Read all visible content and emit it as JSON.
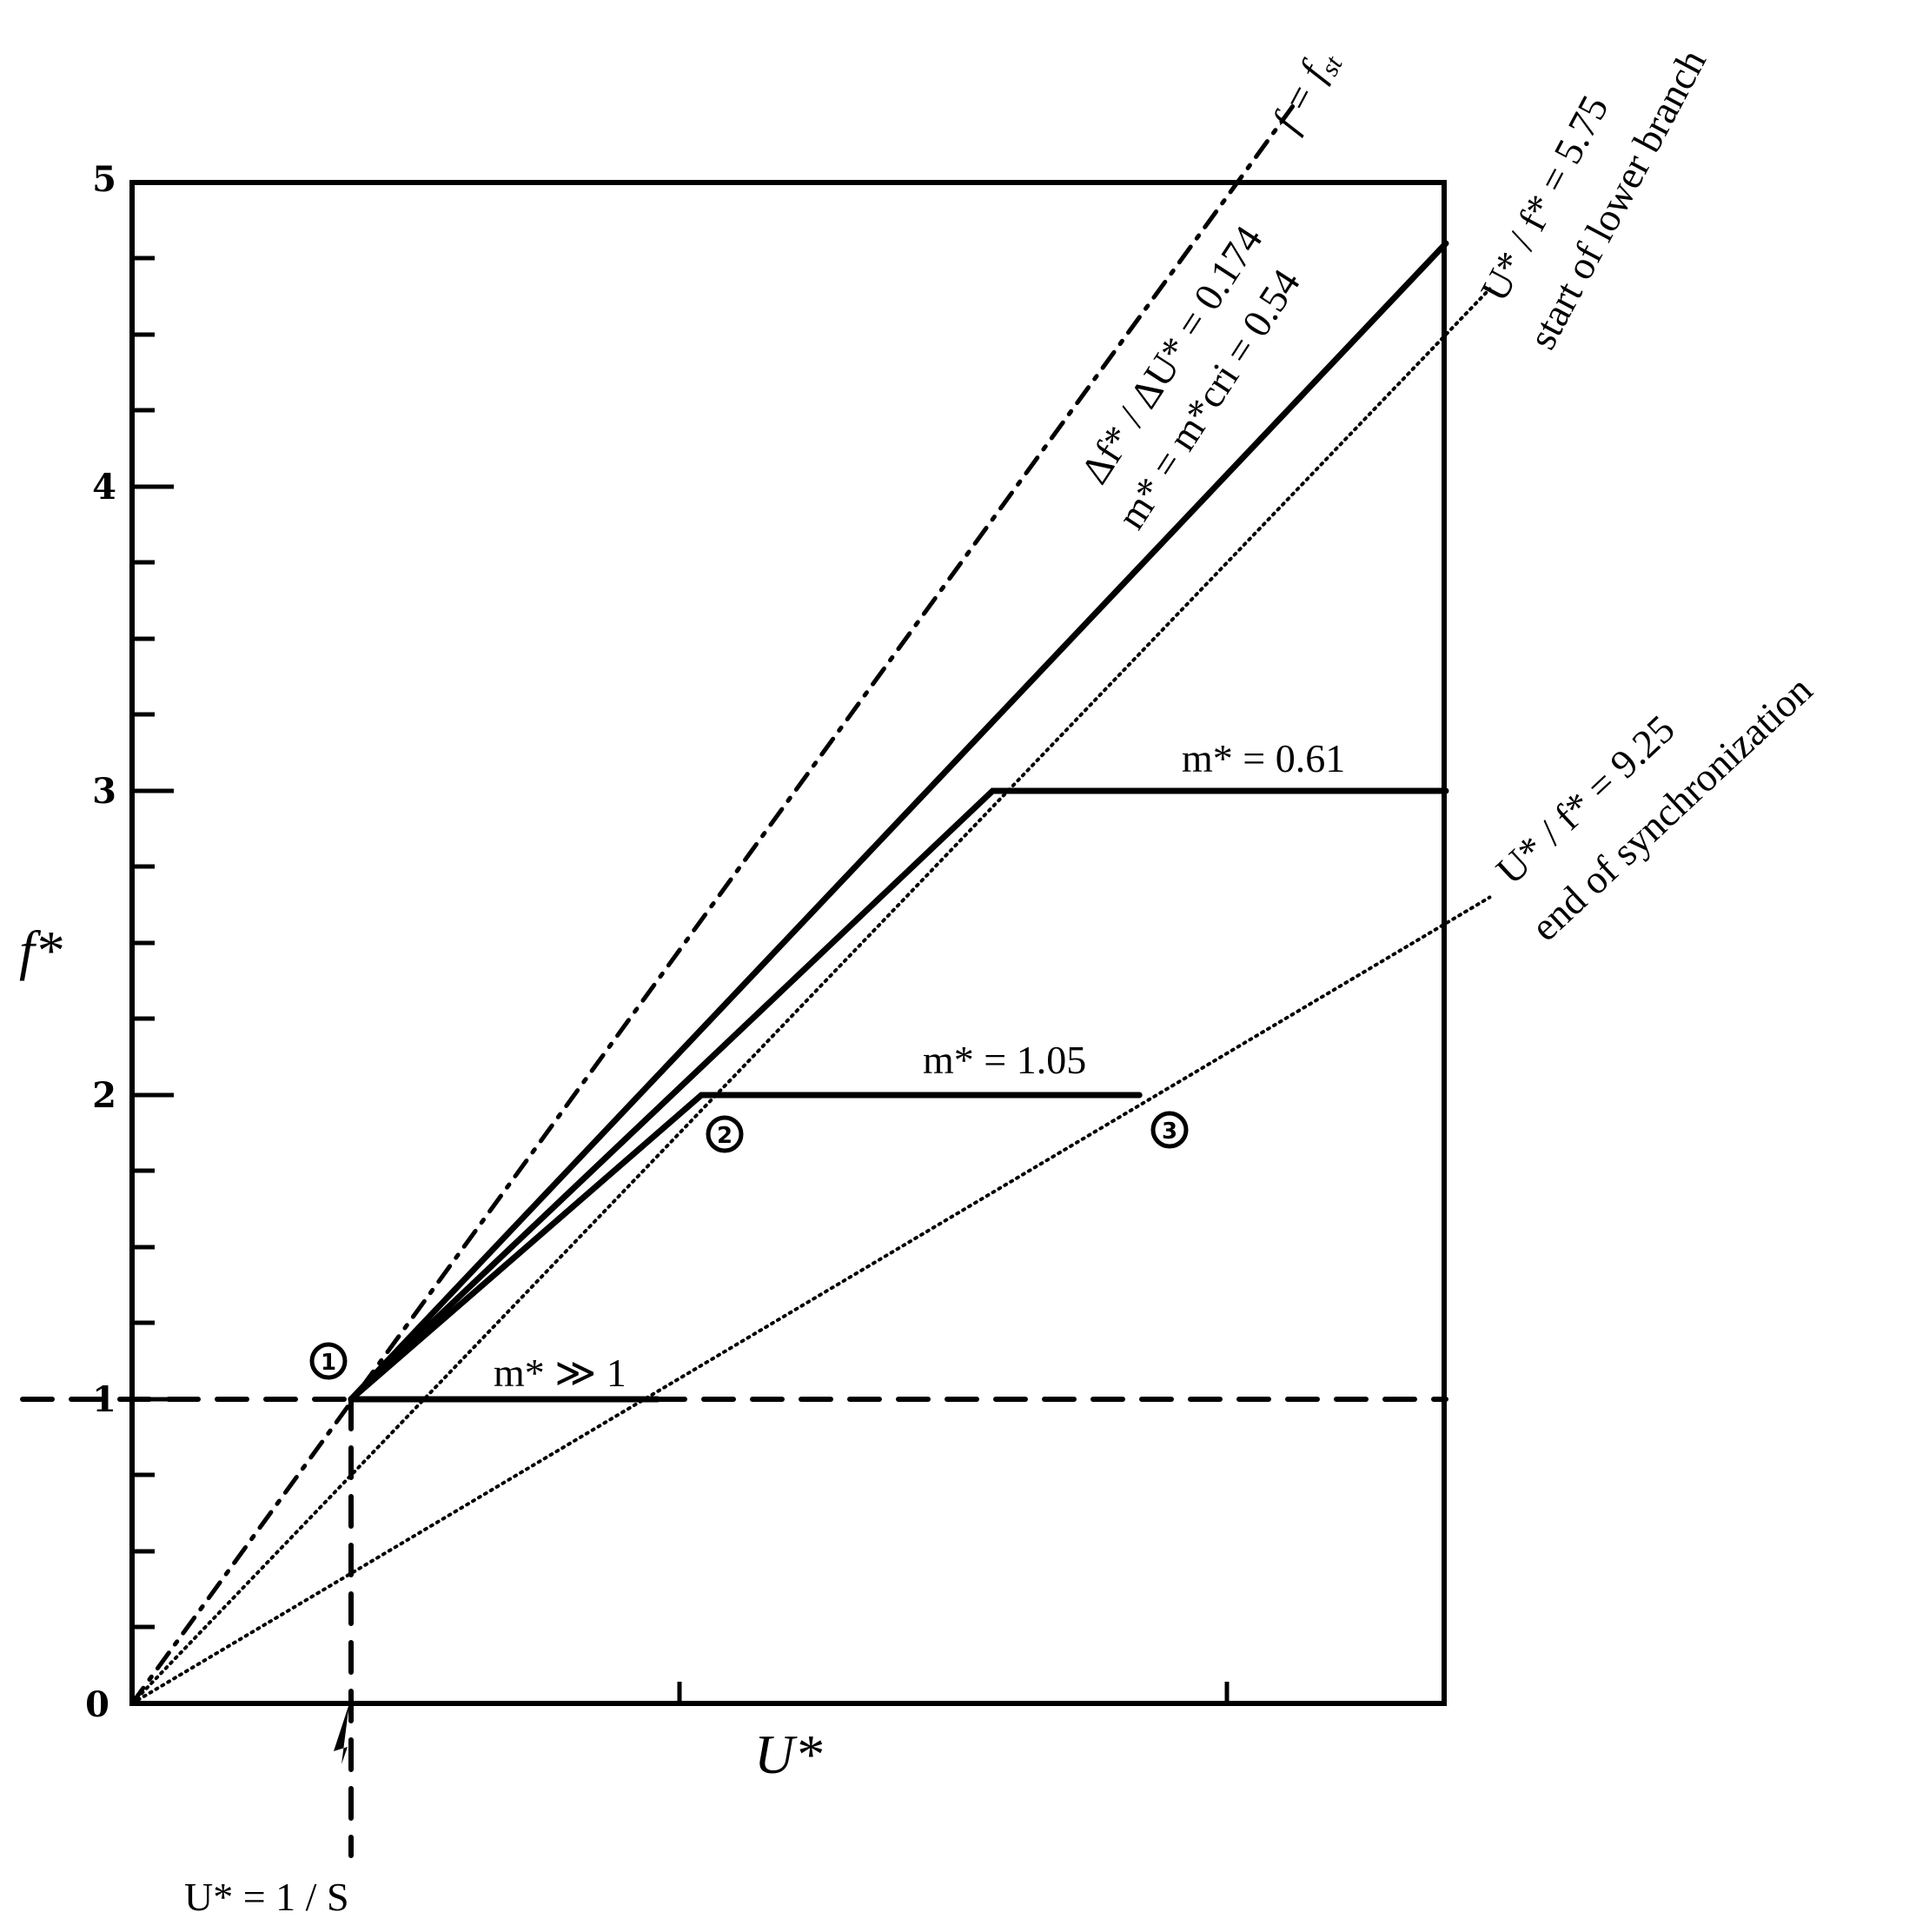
{
  "chart_data": {
    "type": "line",
    "title": "",
    "xlabel": "U*",
    "ylabel": "f*",
    "ylim": [
      0,
      5
    ],
    "yticks": [
      "0",
      "1",
      "2",
      "3",
      "4",
      "5"
    ],
    "xlim": [
      0,
      6
    ],
    "grid": false,
    "series": [
      {
        "name": "f = f_st",
        "style": "dash-dot",
        "points": [
          [
            0,
            0
          ],
          [
            5.3,
            5.25
          ]
        ]
      },
      {
        "name": "Δf*/ΔU* = 0.174",
        "style": "solid",
        "points": [
          [
            1.0,
            1.0
          ],
          [
            6.0,
            4.8
          ]
        ]
      },
      {
        "name": "m* = m*cri = 0.54",
        "style": "solid",
        "points": [
          [
            1.0,
            1.0
          ],
          [
            3.93,
            3.0
          ],
          [
            6.0,
            3.0
          ]
        ]
      },
      {
        "name": "m* = 1.05",
        "style": "solid",
        "points": [
          [
            1.0,
            1.0
          ],
          [
            2.6,
            2.0
          ],
          [
            4.6,
            2.0
          ]
        ]
      },
      {
        "name": "m* >> 1",
        "style": "solid",
        "points": [
          [
            1.0,
            1.0
          ],
          [
            2.4,
            1.0
          ]
        ]
      },
      {
        "name": "f* = 1",
        "style": "dashed",
        "points": [
          [
            -0.5,
            1.0
          ],
          [
            6.0,
            1.0
          ]
        ]
      },
      {
        "name": "U*/f* = 5.75",
        "style": "dotted",
        "points": [
          [
            0,
            0
          ],
          [
            6.2,
            4.65
          ]
        ]
      },
      {
        "name": "U*/f* = 9.25",
        "style": "dotted",
        "points": [
          [
            0,
            0
          ],
          [
            6.2,
            2.65
          ]
        ]
      },
      {
        "name": "U* = 1/S",
        "style": "dashed",
        "points": [
          [
            1.0,
            1.0
          ],
          [
            1.0,
            -0.5
          ]
        ]
      }
    ],
    "annotations": {
      "fst": "f = f",
      "fst_sub": "st",
      "slope": "Δf* / ΔU* = 0.174",
      "mcri": "m* = m*cri = 0.54",
      "start_ratio": "U* / f* = 5.75",
      "start_text": "start of lower branch",
      "m061": "m* = 0.61",
      "end_ratio": "U* / f* = 9.25",
      "end_text": "end of synchronization",
      "m105": "m* = 1.05",
      "mgg": "m* ≫ 1",
      "us": "U* = 1 / S",
      "c1": "1",
      "c2": "2",
      "c3": "3"
    }
  }
}
